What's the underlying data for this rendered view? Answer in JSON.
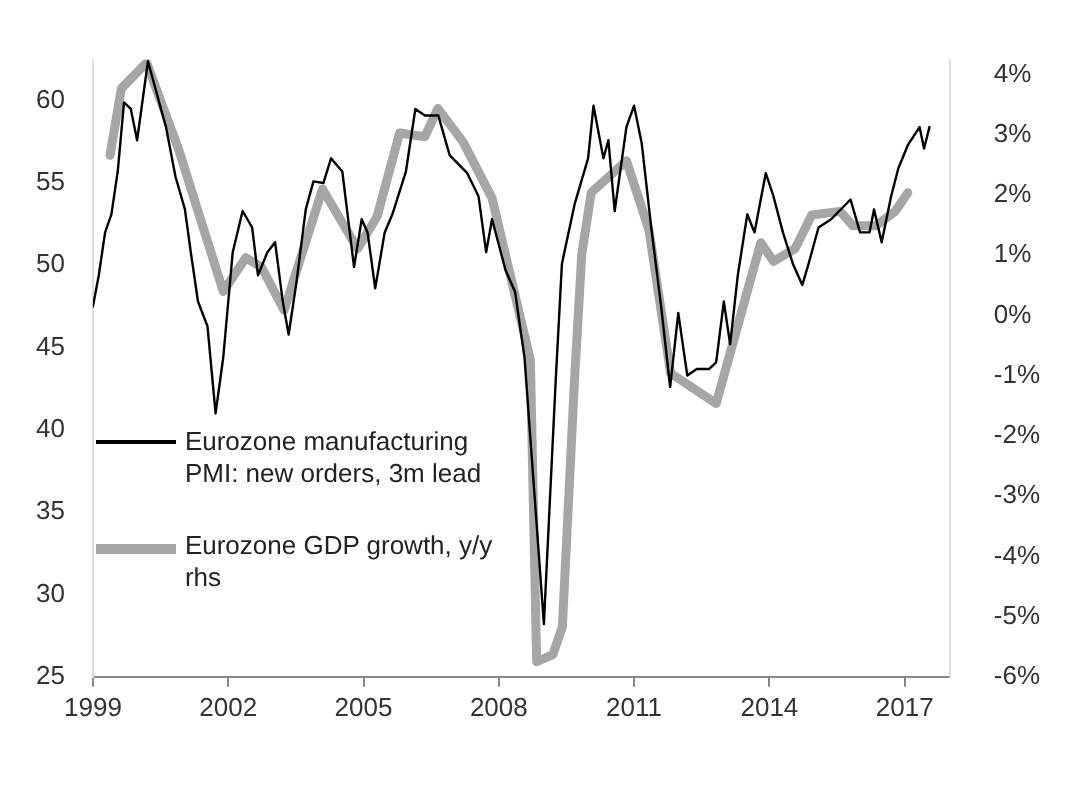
{
  "chart_data": {
    "type": "line",
    "xlim": [
      1999,
      2018
    ],
    "xticks": [
      1999,
      2002,
      2005,
      2008,
      2011,
      2014,
      2017
    ],
    "ylim": [
      25,
      62.5
    ],
    "yticks": [
      25,
      30,
      35,
      40,
      45,
      50,
      55,
      60
    ],
    "y2lim": [
      -6,
      4.25
    ],
    "y2ticks": [
      {
        "value": -6,
        "label": "-6%"
      },
      {
        "value": -5,
        "label": "-5%"
      },
      {
        "value": -4,
        "label": "-4%"
      },
      {
        "value": -3,
        "label": "-3%"
      },
      {
        "value": -2,
        "label": "-2%"
      },
      {
        "value": -1,
        "label": "-1%"
      },
      {
        "value": 0,
        "label": "0%"
      },
      {
        "value": 1,
        "label": "1%"
      },
      {
        "value": 2,
        "label": "2%"
      },
      {
        "value": 3,
        "label": "3%"
      },
      {
        "value": 4,
        "label": "4%"
      }
    ],
    "grid": false,
    "legend": "bottom left",
    "marker": "none",
    "line_style": "solid",
    "series": [
      {
        "name": "Eurozone manufacturing PMI: new orders, 3m lead",
        "color": "#000000",
        "x": [
          1999.0,
          1999.13,
          1999.27,
          1999.41,
          1999.55,
          1999.69,
          1999.84,
          1999.98,
          2000.22,
          2000.62,
          2000.83,
          2001.04,
          2001.17,
          2001.33,
          2001.54,
          2001.72,
          2001.89,
          2002.1,
          2002.32,
          2002.53,
          2002.66,
          2002.87,
          2003.04,
          2003.21,
          2003.34,
          2003.51,
          2003.72,
          2003.89,
          2004.11,
          2004.28,
          2004.53,
          2004.79,
          2004.96,
          2005.09,
          2005.26,
          2005.47,
          2005.64,
          2005.94,
          2006.15,
          2006.36,
          2006.66,
          2006.91,
          2007.3,
          2007.55,
          2007.72,
          2007.85,
          2008.15,
          2008.36,
          2008.57,
          2009.0,
          2009.26,
          2009.4,
          2009.68,
          2009.98,
          2010.1,
          2010.32,
          2010.43,
          2010.57,
          2010.83,
          2011.0,
          2011.17,
          2011.38,
          2011.6,
          2011.8,
          2011.98,
          2012.18,
          2012.39,
          2012.66,
          2012.82,
          2012.99,
          2013.13,
          2013.3,
          2013.51,
          2013.67,
          2013.92,
          2014.09,
          2014.3,
          2014.52,
          2014.73,
          2014.87,
          2015.09,
          2015.37,
          2015.8,
          2016.01,
          2016.22,
          2016.32,
          2016.49,
          2016.7,
          2016.86,
          2017.07,
          2017.33,
          2017.43,
          2017.55
        ],
        "values": [
          47.5,
          49.4,
          52.0,
          53.1,
          55.7,
          59.9,
          59.5,
          57.6,
          62.4,
          58.4,
          55.4,
          53.4,
          50.8,
          47.8,
          46.3,
          41.0,
          44.4,
          50.8,
          53.3,
          52.3,
          49.4,
          50.8,
          51.4,
          47.8,
          45.8,
          48.9,
          53.4,
          55.1,
          55.0,
          56.5,
          55.7,
          49.9,
          52.8,
          52.0,
          48.6,
          52.0,
          53.1,
          55.7,
          59.5,
          59.1,
          59.1,
          56.7,
          55.6,
          54.2,
          50.8,
          52.8,
          49.7,
          48.4,
          44.4,
          28.2,
          42.9,
          50.1,
          53.7,
          56.5,
          59.7,
          56.5,
          57.6,
          53.3,
          58.4,
          59.7,
          57.4,
          52.3,
          47.5,
          42.6,
          47.1,
          43.3,
          43.7,
          43.7,
          44.1,
          47.8,
          45.2,
          49.4,
          53.1,
          52.0,
          55.6,
          54.2,
          52.0,
          50.1,
          48.8,
          50.1,
          52.3,
          52.8,
          54.0,
          52.0,
          52.0,
          53.4,
          51.4,
          54.2,
          55.9,
          57.3,
          58.4,
          57.1,
          58.4
        ]
      },
      {
        "name": "Eurozone GDP growth, y/y rhs",
        "color": "#a6a6a6",
        "axis": "y2",
        "x": [
          1999.38,
          1999.63,
          2000.19,
          2000.9,
          2001.89,
          2002.39,
          2002.74,
          2003.24,
          2004.09,
          2004.87,
          2005.3,
          2005.8,
          2006.36,
          2006.65,
          2007.21,
          2007.85,
          2008.7,
          2008.84,
          2009.2,
          2009.41,
          2009.68,
          2009.84,
          2010.05,
          2010.83,
          2011.33,
          2011.81,
          2012.82,
          2013.81,
          2014.09,
          2014.57,
          2014.94,
          2015.57,
          2015.85,
          2016.36,
          2016.79,
          2017.07
        ],
        "values": [
          2.66,
          3.77,
          4.2,
          2.76,
          0.4,
          0.96,
          0.8,
          0.09,
          2.1,
          1.11,
          1.64,
          3.03,
          2.97,
          3.44,
          2.88,
          1.95,
          -0.74,
          -5.75,
          -5.63,
          -5.17,
          -1.05,
          1.02,
          2.04,
          2.57,
          1.42,
          -0.96,
          -1.46,
          1.21,
          0.9,
          1.11,
          1.67,
          1.73,
          1.49,
          1.49,
          1.73,
          2.04
        ]
      }
    ]
  }
}
